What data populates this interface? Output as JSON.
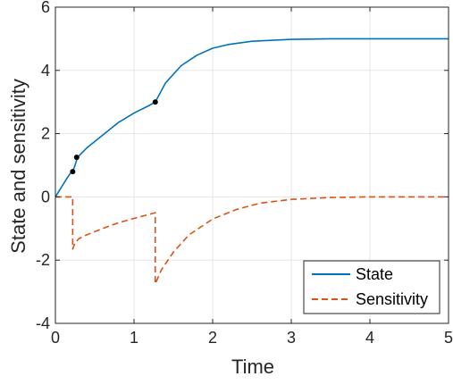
{
  "chart_data": {
    "type": "line",
    "xlabel": "Time",
    "ylabel": "State and sensitivity",
    "xlim": [
      0,
      5
    ],
    "ylim": [
      -4,
      6
    ],
    "xticks": [
      0,
      1,
      2,
      3,
      4,
      5
    ],
    "yticks": [
      -4,
      -2,
      0,
      2,
      4,
      6
    ],
    "xtick_labels": [
      "0",
      "1",
      "2",
      "3",
      "4",
      "5"
    ],
    "ytick_labels": [
      "-4",
      "-2",
      "0",
      "2",
      "4",
      "6"
    ],
    "grid": true,
    "legend_position": "bottom-right",
    "series": [
      {
        "name": "State",
        "style": "solid",
        "color": "#0072BD",
        "x": [
          0,
          0.05,
          0.1,
          0.15,
          0.2,
          0.22,
          0.25,
          0.28,
          0.4,
          0.6,
          0.8,
          1.0,
          1.2,
          1.27,
          1.4,
          1.6,
          1.8,
          2.0,
          2.2,
          2.5,
          3.0,
          3.5,
          4.0,
          4.5,
          5.0
        ],
        "y": [
          0,
          0.2,
          0.4,
          0.6,
          0.78,
          0.8,
          1.0,
          1.25,
          1.55,
          1.95,
          2.35,
          2.65,
          2.9,
          3.0,
          3.6,
          4.15,
          4.48,
          4.7,
          4.82,
          4.92,
          4.98,
          5.0,
          5.0,
          5.0,
          5.0
        ]
      },
      {
        "name": "Sensitivity",
        "style": "dashed",
        "color": "#D95319",
        "x": [
          0,
          0.22,
          0.22,
          0.25,
          0.3,
          0.4,
          0.6,
          0.8,
          1.0,
          1.2,
          1.27,
          1.27,
          1.35,
          1.5,
          1.7,
          2.0,
          2.3,
          2.6,
          3.0,
          3.5,
          4.0,
          4.5,
          5.0
        ],
        "y": [
          0,
          0,
          -1.65,
          -1.45,
          -1.32,
          -1.2,
          -1.0,
          -0.82,
          -0.68,
          -0.55,
          -0.5,
          -2.75,
          -2.3,
          -1.75,
          -1.2,
          -0.7,
          -0.4,
          -0.2,
          -0.08,
          -0.02,
          0,
          0,
          0
        ]
      }
    ],
    "markers": {
      "color": "#000000",
      "points": [
        {
          "x": 0.22,
          "y": 0.8
        },
        {
          "x": 0.27,
          "y": 1.25
        },
        {
          "x": 1.27,
          "y": 3.0
        }
      ]
    }
  }
}
